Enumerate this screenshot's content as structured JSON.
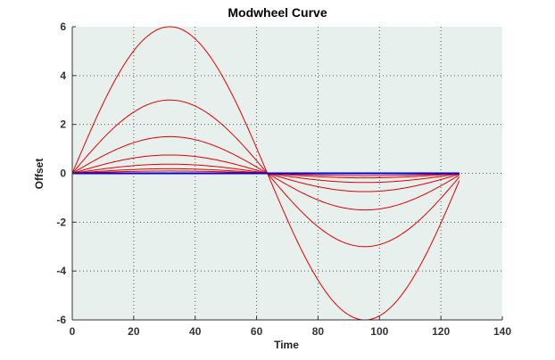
{
  "chart_data": {
    "type": "line",
    "title": "Modwheel Curve",
    "xlabel": "Time",
    "ylabel": "Offset",
    "xlim": [
      0,
      140
    ],
    "ylim": [
      -6,
      6
    ],
    "xticks": [
      0,
      20,
      40,
      60,
      80,
      100,
      120,
      140
    ],
    "yticks": [
      -6,
      -4,
      -2,
      0,
      2,
      4,
      6
    ],
    "grid": true,
    "background": "#e8f0ee",
    "curve": {
      "shape": "sine",
      "period": 127,
      "x_start": 0,
      "x_end": 126,
      "color": "#e00000",
      "amplitudes": [
        6,
        3,
        1.5,
        0.75,
        0.375,
        0.1875,
        0.09375
      ]
    },
    "baseline": {
      "x": [
        0,
        126
      ],
      "y": [
        0,
        0
      ],
      "color": "#0000e0"
    }
  }
}
